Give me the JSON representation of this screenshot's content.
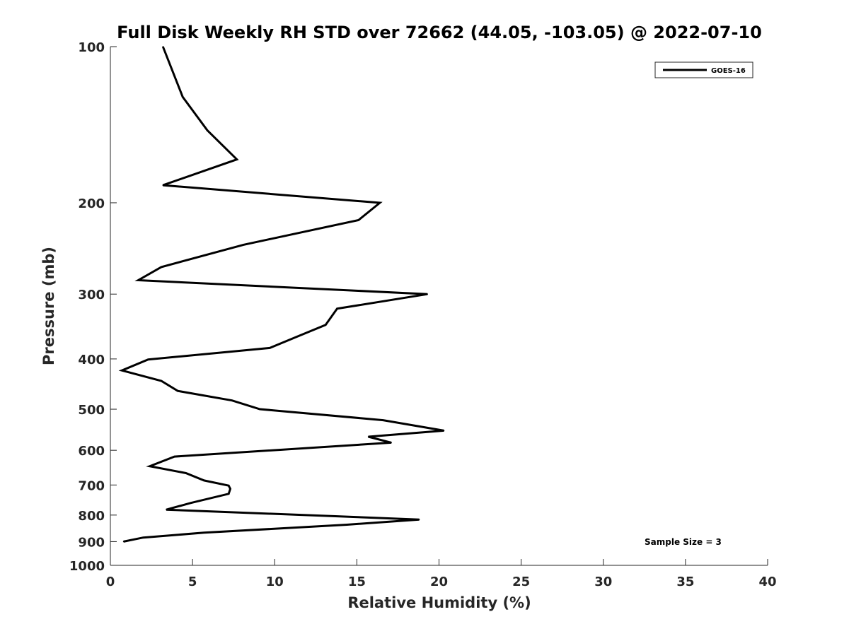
{
  "chart_data": {
    "type": "line",
    "title": "Full Disk Weekly RH STD over 72662 (44.05, -103.05) @ 2022-07-10",
    "xlabel": "Relative Humidity (%)",
    "ylabel": "Pressure (mb)",
    "xlim": [
      0,
      40
    ],
    "ylim": [
      100,
      1000
    ],
    "y_scale": "log",
    "y_reversed": true,
    "x_ticks": [
      0,
      5,
      10,
      15,
      20,
      25,
      30,
      35,
      40
    ],
    "y_ticks": [
      100,
      200,
      300,
      400,
      500,
      600,
      700,
      800,
      900,
      1000
    ],
    "grid": false,
    "legend_position": "top-right",
    "series": [
      {
        "name": "GOES-16",
        "color": "#000000",
        "points": [
          {
            "x": 3.2,
            "y": 100
          },
          {
            "x": 4.4,
            "y": 125
          },
          {
            "x": 5.9,
            "y": 145
          },
          {
            "x": 7.7,
            "y": 165
          },
          {
            "x": 3.2,
            "y": 185
          },
          {
            "x": 16.4,
            "y": 200
          },
          {
            "x": 15.1,
            "y": 216
          },
          {
            "x": 8.1,
            "y": 241
          },
          {
            "x": 3.1,
            "y": 266
          },
          {
            "x": 1.7,
            "y": 282
          },
          {
            "x": 19.3,
            "y": 300
          },
          {
            "x": 13.8,
            "y": 320
          },
          {
            "x": 13.1,
            "y": 344
          },
          {
            "x": 11.3,
            "y": 363
          },
          {
            "x": 9.7,
            "y": 381
          },
          {
            "x": 2.3,
            "y": 401
          },
          {
            "x": 0.7,
            "y": 421
          },
          {
            "x": 3.1,
            "y": 441
          },
          {
            "x": 4.1,
            "y": 461
          },
          {
            "x": 7.4,
            "y": 481
          },
          {
            "x": 9.1,
            "y": 500
          },
          {
            "x": 16.6,
            "y": 525
          },
          {
            "x": 20.3,
            "y": 550
          },
          {
            "x": 15.7,
            "y": 565
          },
          {
            "x": 17.1,
            "y": 580
          },
          {
            "x": 3.9,
            "y": 617
          },
          {
            "x": 2.4,
            "y": 644
          },
          {
            "x": 4.6,
            "y": 664
          },
          {
            "x": 5.7,
            "y": 686
          },
          {
            "x": 7.2,
            "y": 702
          },
          {
            "x": 7.3,
            "y": 712
          },
          {
            "x": 7.2,
            "y": 728
          },
          {
            "x": 4.9,
            "y": 758
          },
          {
            "x": 3.4,
            "y": 781
          },
          {
            "x": 18.8,
            "y": 816
          },
          {
            "x": 14.4,
            "y": 835
          },
          {
            "x": 5.7,
            "y": 865
          },
          {
            "x": 2.0,
            "y": 884
          },
          {
            "x": 0.8,
            "y": 900
          }
        ]
      }
    ],
    "annotation": "Sample Size = 3"
  }
}
